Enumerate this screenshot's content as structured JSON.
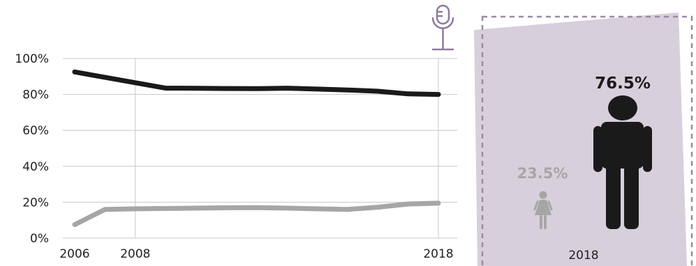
{
  "chart_data": [
    {
      "type": "line",
      "xlim": [
        2006,
        2018
      ],
      "ylim": [
        0,
        100
      ],
      "y_ticks": [
        "0%",
        "20%",
        "40%",
        "60%",
        "80%",
        "100%"
      ],
      "x_ticks": [
        "2006",
        "2008",
        "2018"
      ],
      "grid": true,
      "colors": {
        "men": "#1a1a1a",
        "women": "#a6a6a6",
        "grid": "#c8c8c8"
      },
      "series": [
        {
          "x": [
            2006,
            2007,
            2008,
            2009,
            2010,
            2011,
            2012,
            2013,
            2014,
            2015,
            2016,
            2017,
            2018
          ],
          "values": [
            92.5,
            89.5,
            86.5,
            83.5,
            83.4,
            83.3,
            83.2,
            83.5,
            83.0,
            82.5,
            81.8,
            80.3,
            80.0
          ]
        },
        {
          "x": [
            2006,
            2007,
            2008,
            2009,
            2010,
            2011,
            2012,
            2013,
            2014,
            2015,
            2016,
            2017,
            2018
          ],
          "values": [
            7.5,
            16.0,
            16.3,
            16.5,
            16.7,
            16.9,
            17.0,
            16.7,
            16.3,
            16.0,
            17.2,
            19.0,
            19.5
          ]
        }
      ]
    },
    {
      "type": "pie",
      "categories": [
        "Men",
        "Women"
      ],
      "values": [
        76.5,
        23.5
      ],
      "labels": [
        "76.5%",
        "23.5%"
      ],
      "xlabel": "2018",
      "colors": {
        "men": "#1a1a1a",
        "women": "#a6a6a6",
        "panel": "#d8cfdc",
        "border": "#9a8aa6"
      }
    }
  ],
  "icons": {
    "microphone": "microphone-icon",
    "man": "man-icon",
    "woman": "woman-icon"
  }
}
